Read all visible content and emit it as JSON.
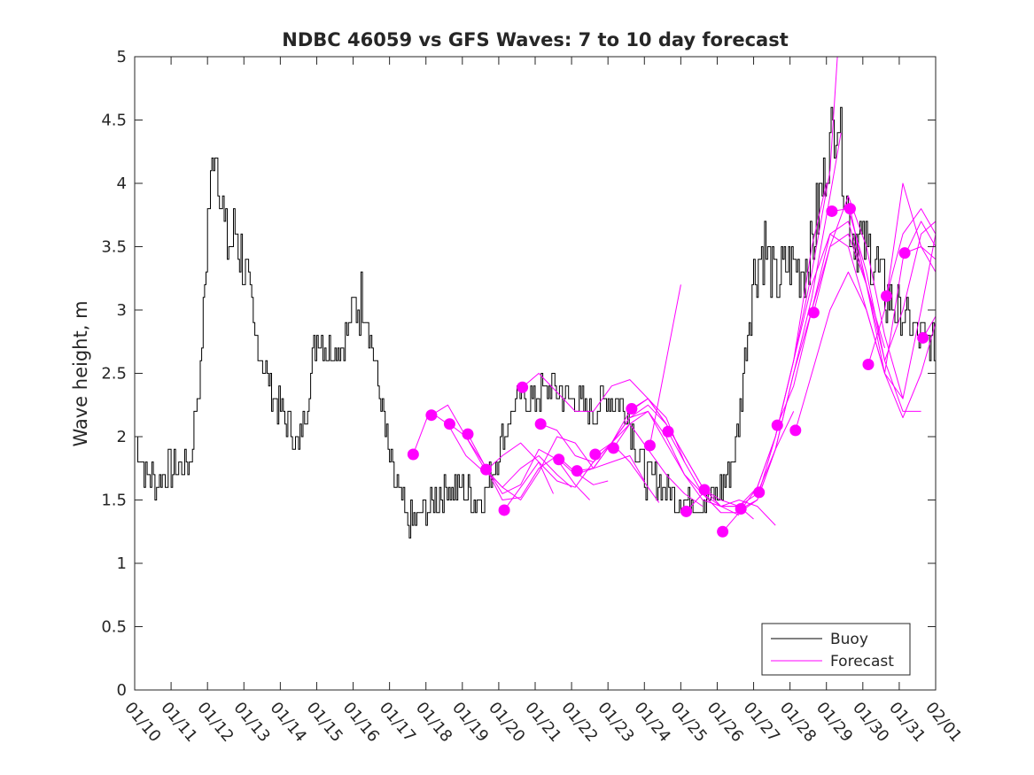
{
  "chart_data": {
    "type": "line",
    "title": "NDBC 46059 vs GFS Waves: 7 to 10 day forecast",
    "xlabel": "",
    "ylabel": "Wave height, m",
    "ylim": [
      0,
      5
    ],
    "yticks": [
      0,
      0.5,
      1,
      1.5,
      2,
      2.5,
      3,
      3.5,
      4,
      4.5,
      5
    ],
    "xticks": [
      "01/10",
      "01/11",
      "01/12",
      "01/13",
      "01/14",
      "01/15",
      "01/16",
      "01/17",
      "01/18",
      "01/19",
      "01/20",
      "01/21",
      "01/22",
      "01/23",
      "01/24",
      "01/25",
      "01/26",
      "01/27",
      "01/28",
      "01/29",
      "01/30",
      "01/31",
      "02/01"
    ],
    "xlim": [
      "01/10",
      "02/01"
    ],
    "grid": false,
    "legend": {
      "position": "bottom-right",
      "entries": [
        "Buoy",
        "Forecast"
      ]
    },
    "colors": {
      "buoy": "#000000",
      "forecast": "#ff00ff"
    },
    "series": [
      {
        "name": "Buoy",
        "x_days_from_01_10": [
          0,
          0.3,
          0.6,
          1,
          1.5,
          1.8,
          2,
          2.2,
          2.5,
          2.8,
          3,
          3.3,
          3.6,
          4,
          4.5,
          5,
          5.3,
          5.7,
          6,
          6.3,
          6.6,
          7,
          7.5,
          8,
          8.5,
          9,
          9.4,
          9.7,
          10,
          10.5,
          11,
          11.5,
          12,
          12.5,
          13,
          13.5,
          14,
          14.5,
          15,
          15.5,
          16,
          16.5,
          17,
          17.3,
          17.6,
          18,
          18.3,
          18.6,
          19,
          19.3,
          19.6,
          20,
          20.3,
          20.6,
          21,
          21.5,
          22
        ],
        "values": [
          2.0,
          1.7,
          1.65,
          1.75,
          1.8,
          2.5,
          3.7,
          4.4,
          3.5,
          3.6,
          3.3,
          2.8,
          2.5,
          2.2,
          1.9,
          2.8,
          2.7,
          2.7,
          3.0,
          3.1,
          2.6,
          1.8,
          1.3,
          1.4,
          1.6,
          1.6,
          1.5,
          1.6,
          1.9,
          2.3,
          2.3,
          2.4,
          2.3,
          2.2,
          2.3,
          2.2,
          1.7,
          1.6,
          1.5,
          1.5,
          1.5,
          1.9,
          3.3,
          3.5,
          3.2,
          3.4,
          3.3,
          3.5,
          4.2,
          4.6,
          3.7,
          3.5,
          3.4,
          3.1,
          3.0,
          2.8,
          2.7
        ]
      }
    ],
    "forecast_points": {
      "x_days_from_01_10": [
        7.65,
        8.15,
        8.65,
        9.15,
        9.65,
        10.15,
        10.65,
        11.15,
        11.65,
        12.15,
        12.65,
        13.15,
        13.65,
        14.15,
        14.65,
        15.15,
        15.65,
        16.15,
        16.65,
        17.15,
        17.65,
        18.15,
        18.65,
        19.15,
        19.65,
        20.15,
        20.65,
        21.15,
        21.65
      ],
      "values": [
        1.86,
        2.17,
        2.1,
        2.02,
        1.74,
        1.42,
        2.39,
        2.1,
        1.82,
        1.73,
        1.86,
        1.91,
        2.22,
        1.93,
        2.04,
        1.41,
        1.58,
        1.25,
        1.43,
        1.56,
        2.09,
        2.05,
        2.98,
        3.78,
        3.8,
        2.57,
        3.11,
        3.45,
        2.78
      ]
    },
    "forecast_tracks": [
      {
        "x": [
          7.65,
          8.1,
          8.6,
          9.1,
          9.6,
          10.1,
          10.6,
          11.1,
          11.5
        ],
        "values": [
          1.86,
          2.2,
          2.1,
          1.85,
          1.72,
          1.85,
          1.95,
          1.8,
          1.55
        ]
      },
      {
        "x": [
          8.15,
          8.6,
          9.1,
          9.6,
          10.1,
          10.6,
          11.1,
          11.6,
          12.0
        ],
        "values": [
          2.17,
          2.25,
          2.0,
          1.75,
          1.6,
          1.75,
          1.85,
          1.7,
          1.6
        ]
      },
      {
        "x": [
          8.65,
          9.1,
          9.6,
          10.1,
          10.6,
          11.1,
          11.6,
          12.1,
          12.5
        ],
        "values": [
          2.1,
          2.0,
          1.78,
          1.55,
          1.62,
          1.9,
          1.82,
          1.62,
          1.5
        ]
      },
      {
        "x": [
          9.15,
          9.6,
          10.1,
          10.6,
          11.1,
          11.6,
          12.1,
          12.6,
          13.0
        ],
        "values": [
          2.02,
          1.78,
          1.5,
          1.52,
          1.75,
          1.85,
          1.72,
          1.62,
          1.65
        ]
      },
      {
        "x": [
          9.65,
          10.1,
          10.6,
          11.1,
          11.6,
          12.1,
          12.6,
          13.1,
          13.6,
          14.0
        ],
        "values": [
          1.74,
          1.6,
          1.5,
          1.72,
          2.0,
          1.95,
          1.75,
          1.8,
          1.85,
          1.65
        ]
      },
      {
        "x": [
          10.15,
          10.6,
          11.1,
          11.6,
          12.1,
          12.6,
          13.1,
          13.6,
          14.1,
          14.4
        ],
        "values": [
          1.42,
          1.6,
          1.8,
          1.65,
          1.6,
          1.8,
          1.95,
          1.8,
          1.6,
          1.48
        ]
      },
      {
        "x": [
          10.65,
          11.1,
          11.6,
          12.1,
          12.6,
          13.1,
          13.6,
          14.1,
          14.6
        ],
        "values": [
          2.39,
          2.5,
          2.35,
          2.2,
          2.2,
          2.4,
          2.45,
          2.3,
          2.1
        ]
      },
      {
        "x": [
          11.15,
          11.6,
          12.1,
          12.6,
          13.1,
          13.6,
          14.1,
          14.6,
          15.1
        ],
        "values": [
          2.1,
          2.05,
          1.85,
          1.8,
          1.95,
          2.2,
          2.3,
          2.15,
          1.8
        ]
      },
      {
        "x": [
          11.65,
          12.1,
          12.6,
          13.1,
          13.6,
          14.1,
          14.6,
          15.1,
          15.6
        ],
        "values": [
          1.82,
          1.7,
          1.75,
          1.95,
          2.1,
          1.9,
          1.7,
          1.55,
          1.45
        ]
      },
      {
        "x": [
          12.15,
          12.6,
          13.1,
          13.6,
          14.1,
          14.6,
          15.1,
          15.6,
          16.1
        ],
        "values": [
          1.73,
          1.75,
          1.95,
          2.15,
          2.2,
          1.95,
          1.7,
          1.55,
          1.4
        ]
      },
      {
        "x": [
          12.65,
          13.1,
          13.6,
          14.1,
          14.6,
          15.1,
          15.6,
          16.1,
          16.6
        ],
        "values": [
          1.86,
          1.95,
          2.15,
          2.25,
          2.1,
          1.85,
          1.6,
          1.45,
          1.38
        ]
      },
      {
        "x": [
          13.15,
          13.6,
          14.1,
          14.6,
          15.1,
          15.6,
          16.1,
          16.6,
          17.0
        ],
        "values": [
          1.91,
          2.1,
          2.2,
          2.0,
          1.7,
          1.5,
          1.45,
          1.45,
          1.35
        ]
      },
      {
        "x": [
          13.65,
          14.1,
          14.6,
          15.1,
          15.6,
          16.1,
          16.6,
          17.1,
          17.6
        ],
        "values": [
          2.22,
          2.3,
          2.1,
          1.85,
          1.6,
          1.45,
          1.5,
          1.45,
          1.3
        ]
      },
      {
        "x": [
          14.15,
          14.4,
          14.6,
          14.8,
          15.0
        ],
        "values": [
          1.93,
          2.3,
          2.6,
          2.9,
          3.2
        ]
      },
      {
        "x": [
          14.65,
          15.1,
          15.6,
          16.1,
          16.6,
          17.1,
          17.6,
          18.1
        ],
        "values": [
          2.04,
          1.8,
          1.55,
          1.4,
          1.4,
          1.5,
          1.9,
          2.2
        ]
      },
      {
        "x": [
          15.15,
          15.6,
          16.1,
          16.6,
          17.1,
          17.6,
          18.1,
          18.6,
          19.0
        ],
        "values": [
          1.41,
          1.55,
          1.45,
          1.45,
          1.6,
          2.0,
          2.6,
          3.5,
          4.0
        ]
      },
      {
        "x": [
          15.65,
          16.1,
          16.6,
          17.1,
          17.6,
          18.1,
          18.6,
          19.1,
          19.4
        ],
        "values": [
          1.58,
          1.5,
          1.45,
          1.55,
          1.9,
          2.5,
          3.1,
          3.9,
          4.4
        ]
      },
      {
        "x": [
          16.15,
          16.6,
          17.1,
          17.6,
          18.1,
          18.6,
          19.1,
          19.3
        ],
        "values": [
          1.25,
          1.4,
          1.6,
          2.0,
          2.6,
          3.3,
          4.1,
          5.0
        ]
      },
      {
        "x": [
          16.65,
          17.1,
          17.6,
          18.1,
          18.6,
          19.1,
          19.6,
          20.1,
          20.6
        ],
        "values": [
          1.43,
          1.5,
          1.9,
          2.5,
          3.0,
          3.6,
          3.7,
          3.2,
          2.7
        ]
      },
      {
        "x": [
          17.15,
          17.6,
          18.1,
          18.6,
          19.1,
          19.6,
          20.1,
          20.6,
          21.1
        ],
        "values": [
          1.56,
          2.0,
          2.6,
          3.2,
          3.6,
          3.5,
          3.0,
          2.5,
          2.3
        ]
      },
      {
        "x": [
          17.65,
          18.1,
          18.6,
          19.1,
          19.6,
          20.1,
          20.6,
          21.1,
          21.6
        ],
        "values": [
          2.09,
          2.4,
          3.0,
          3.5,
          3.6,
          3.2,
          2.6,
          2.2,
          2.2
        ]
      },
      {
        "x": [
          18.15,
          18.6,
          19.1,
          19.6,
          20.1,
          20.6,
          21.1,
          21.6,
          22.0
        ],
        "values": [
          2.05,
          2.5,
          3.0,
          3.3,
          3.0,
          2.5,
          2.15,
          2.5,
          2.9
        ]
      },
      {
        "x": [
          18.65,
          19.1,
          19.6,
          20.1,
          20.6,
          21.1,
          21.6,
          22.0
        ],
        "values": [
          2.98,
          3.5,
          3.9,
          3.5,
          2.8,
          2.3,
          3.0,
          3.6
        ]
      },
      {
        "x": [
          19.15,
          19.6,
          20.1,
          20.6,
          21.1,
          21.6,
          22.0
        ],
        "values": [
          3.78,
          3.8,
          3.3,
          2.6,
          3.0,
          3.6,
          3.7
        ]
      },
      {
        "x": [
          19.65,
          20.1,
          20.6,
          21.1,
          21.6,
          22.0
        ],
        "values": [
          3.8,
          3.2,
          2.5,
          3.4,
          3.7,
          3.5
        ]
      },
      {
        "x": [
          20.15,
          20.6,
          21.1,
          21.6,
          22.0
        ],
        "values": [
          2.57,
          3.0,
          4.0,
          3.5,
          3.3
        ]
      },
      {
        "x": [
          20.65,
          21.1,
          21.6,
          22.0
        ],
        "values": [
          3.11,
          3.6,
          3.8,
          3.6
        ]
      },
      {
        "x": [
          21.15,
          21.6,
          22.0
        ],
        "values": [
          3.45,
          3.5,
          3.4
        ]
      },
      {
        "x": [
          21.65,
          22.0
        ],
        "values": [
          2.78,
          2.95
        ]
      }
    ]
  }
}
